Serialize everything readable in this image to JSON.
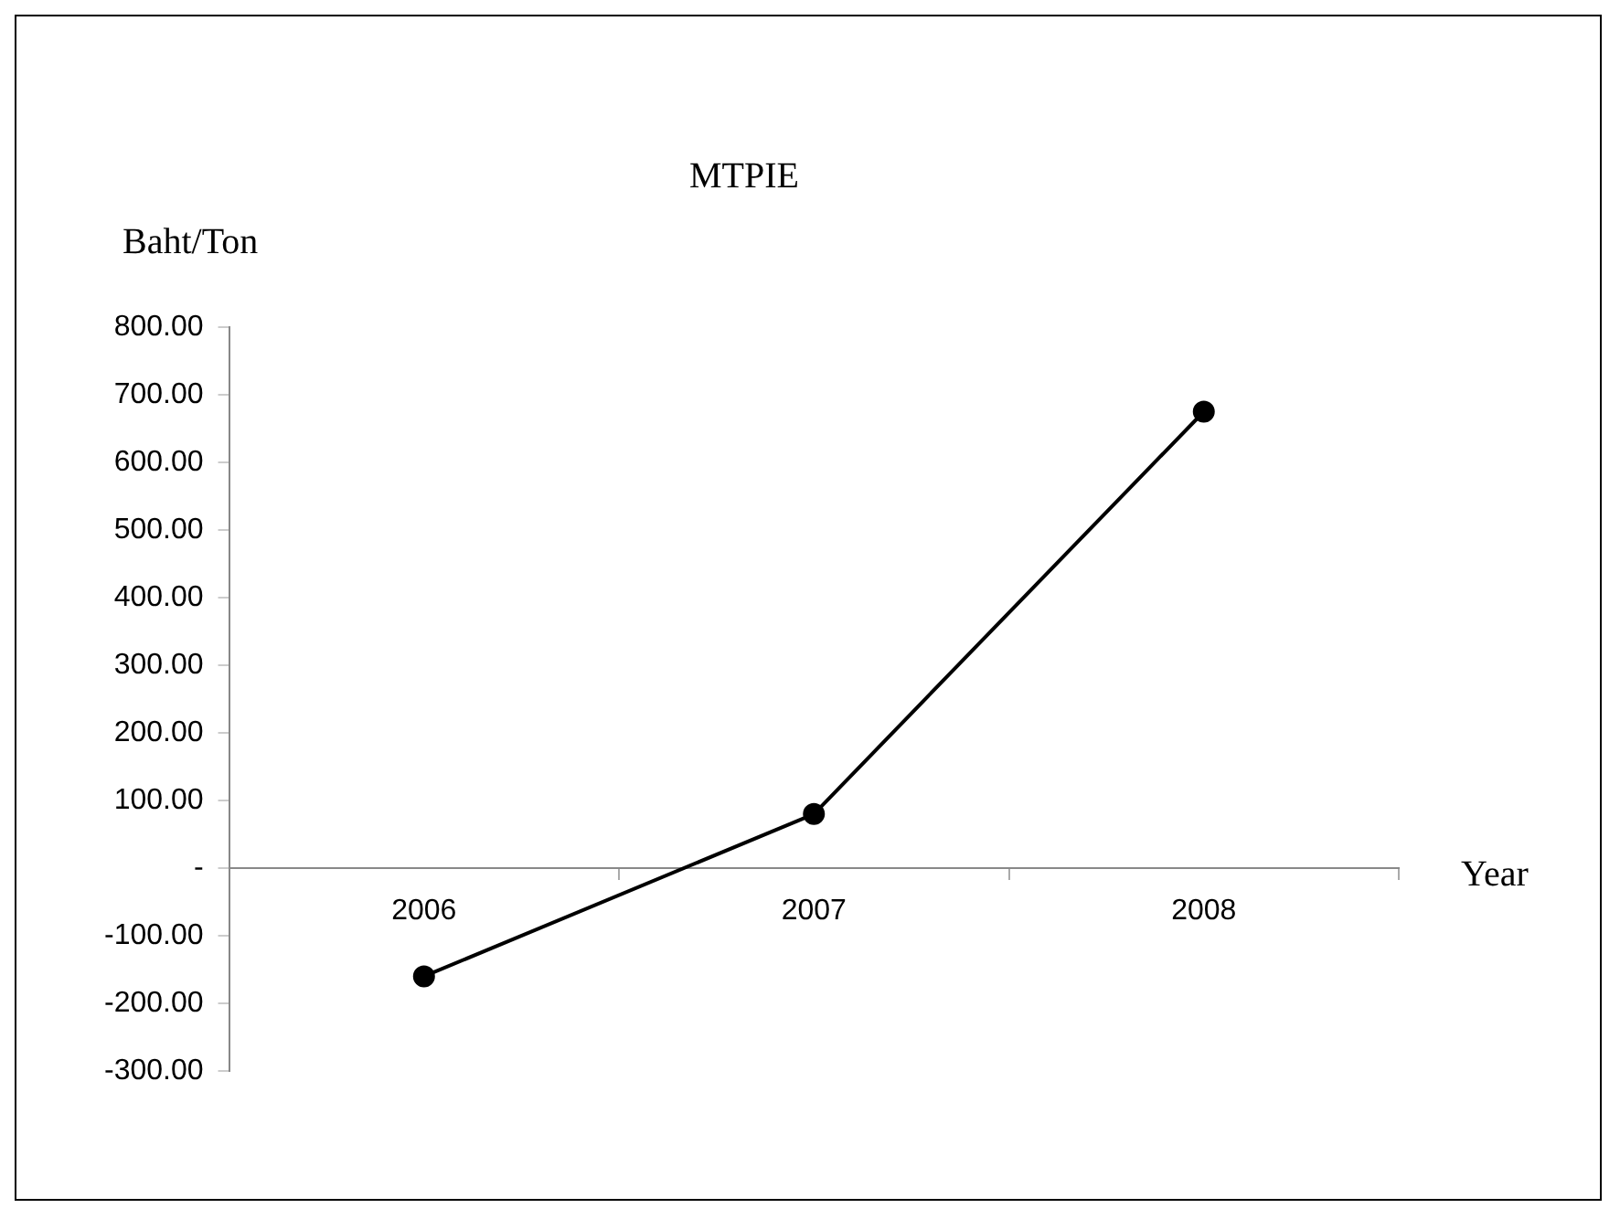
{
  "chart_data": {
    "type": "line",
    "title": "MTPIE",
    "xlabel": "Year",
    "ylabel": "Baht/Ton",
    "categories": [
      "2006",
      "2007",
      "2008"
    ],
    "series": [
      {
        "color": "#000000",
        "values": [
          -160,
          80,
          675
        ]
      }
    ],
    "ylim": [
      -300,
      800
    ],
    "yticks": [
      {
        "value": -300,
        "label": "-300.00"
      },
      {
        "value": -200,
        "label": "-200.00"
      },
      {
        "value": -100,
        "label": "-100.00"
      },
      {
        "value": 0,
        "label": "-"
      },
      {
        "value": 100,
        "label": "100.00"
      },
      {
        "value": 200,
        "label": "200.00"
      },
      {
        "value": 300,
        "label": "300.00"
      },
      {
        "value": 400,
        "label": "400.00"
      },
      {
        "value": 500,
        "label": "500.00"
      },
      {
        "value": 600,
        "label": "600.00"
      },
      {
        "value": 700,
        "label": "700.00"
      },
      {
        "value": 800,
        "label": "800.00"
      }
    ],
    "grid": false,
    "legend": false,
    "marker": "circle",
    "line_style": "solid"
  }
}
